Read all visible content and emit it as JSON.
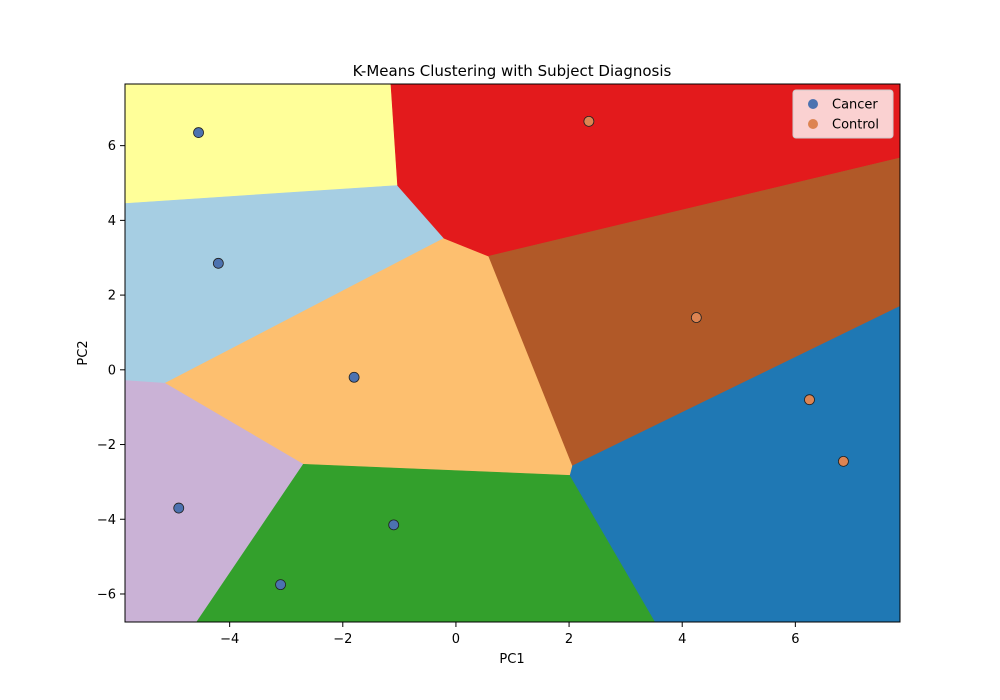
{
  "chart_data": {
    "type": "scatter",
    "title": "K-Means Clustering with Subject Diagnosis",
    "xlabel": "PC1",
    "ylabel": "PC2",
    "xlim": [
      -5.85,
      7.85
    ],
    "ylim": [
      -6.75,
      7.65
    ],
    "xticks": [
      -4,
      -2,
      0,
      2,
      4,
      6
    ],
    "yticks": [
      -6,
      -4,
      -2,
      0,
      2,
      4,
      6
    ],
    "grid": false,
    "legend_position": "top-right",
    "background": "k-means decision regions",
    "centroids": [
      {
        "x": -4.55,
        "y": 6.35,
        "color": "#ffff99"
      },
      {
        "x": -4.2,
        "y": 2.85,
        "color": "#a6cee3"
      },
      {
        "x": -1.8,
        "y": -0.2,
        "color": "#fdbf6f"
      },
      {
        "x": -4.9,
        "y": -3.7,
        "color": "#cab2d6"
      },
      {
        "x": -2.1,
        "y": -4.95,
        "color": "#33a02c"
      },
      {
        "x": 2.35,
        "y": 6.65,
        "color": "#e31a1c"
      },
      {
        "x": 4.25,
        "y": 1.4,
        "color": "#b15928"
      },
      {
        "x": 6.5,
        "y": -1.65,
        "color": "#1f78b4"
      }
    ],
    "series": [
      {
        "name": "Cancer",
        "color": "#4c72b0",
        "points": [
          {
            "x": -4.55,
            "y": 6.35
          },
          {
            "x": -4.2,
            "y": 2.85
          },
          {
            "x": -1.8,
            "y": -0.2
          },
          {
            "x": -4.9,
            "y": -3.7
          },
          {
            "x": -1.1,
            "y": -4.15
          },
          {
            "x": -3.1,
            "y": -5.75
          }
        ]
      },
      {
        "name": "Control",
        "color": "#dd8452",
        "points": [
          {
            "x": 2.35,
            "y": 6.65
          },
          {
            "x": 4.25,
            "y": 1.4
          },
          {
            "x": 6.25,
            "y": -0.8
          },
          {
            "x": 6.85,
            "y": -2.45
          }
        ]
      }
    ]
  }
}
